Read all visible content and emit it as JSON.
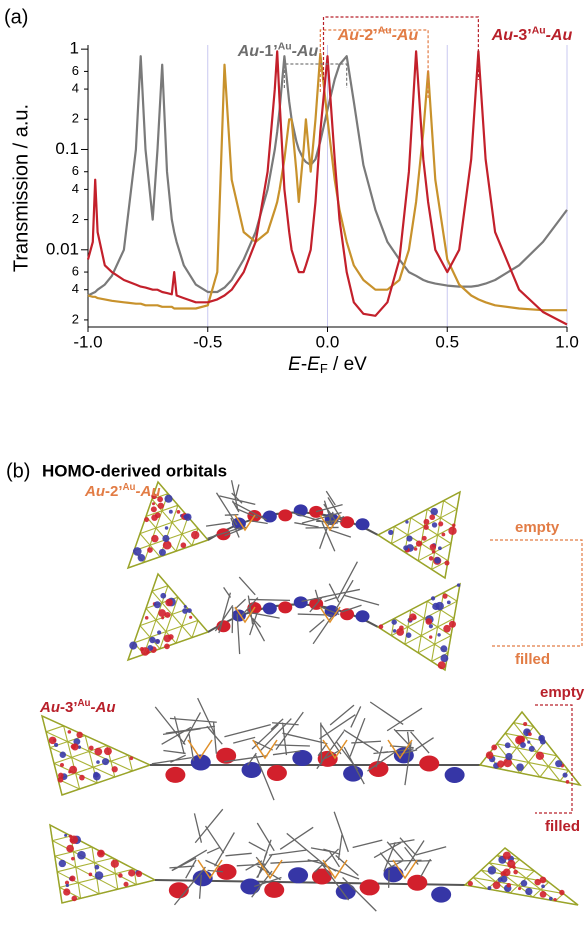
{
  "panel_a_label": "(a)",
  "chart_data": {
    "type": "line",
    "ylabel": "Transmission / a.u.",
    "xlabel": {
      "main": "E",
      "dash": "-",
      "main2": "E",
      "sub": "F",
      "unit": " / eV"
    },
    "x": [
      -1,
      -0.98,
      -0.97,
      -0.96,
      -0.93,
      -0.9,
      -0.85,
      -0.8,
      -0.78,
      -0.76,
      -0.73,
      -0.71,
      -0.69,
      -0.67,
      -0.65,
      -0.64,
      -0.63,
      -0.6,
      -0.55,
      -0.5,
      -0.46,
      -0.43,
      -0.4,
      -0.35,
      -0.3,
      -0.25,
      -0.22,
      -0.21,
      -0.2,
      -0.18,
      -0.16,
      -0.15,
      -0.13,
      -0.12,
      -0.1,
      -0.09,
      -0.07,
      -0.05,
      -0.03,
      0,
      0.03,
      0.05,
      0.08,
      0.11,
      0.15,
      0.2,
      0.25,
      0.3,
      0.34,
      0.37,
      0.4,
      0.42,
      0.45,
      0.5,
      0.55,
      0.6,
      0.63,
      0.66,
      0.7,
      0.8,
      0.9,
      1.0
    ],
    "series": [
      {
        "name": [
          "Au",
          "-1’",
          "Au",
          "-Au"
        ],
        "color": "#7a7a7a",
        "label_color": "#6e6e6e",
        "values": [
          0.0035,
          0.0037,
          0.0038,
          0.004,
          0.0045,
          0.0055,
          0.01,
          0.1,
          0.85,
          0.1,
          0.02,
          0.1,
          0.7,
          0.06,
          0.02,
          0.015,
          0.012,
          0.007,
          0.0045,
          0.0038,
          0.0038,
          0.0042,
          0.005,
          0.008,
          0.015,
          0.04,
          0.1,
          0.15,
          0.25,
          0.85,
          0.3,
          0.2,
          0.12,
          0.1,
          0.08,
          0.075,
          0.07,
          0.08,
          0.12,
          0.25,
          0.5,
          0.7,
          0.85,
          0.3,
          0.07,
          0.025,
          0.012,
          0.008,
          0.006,
          0.0055,
          0.005,
          0.0048,
          0.0046,
          0.0044,
          0.0043,
          0.0043,
          0.0044,
          0.0046,
          0.005,
          0.007,
          0.012,
          0.025
        ]
      },
      {
        "name": [
          "Au",
          "-2’",
          "Au",
          "-Au"
        ],
        "color": "#c8922c",
        "label_color": "#e27c45",
        "values": [
          0.0035,
          0.0034,
          0.0034,
          0.0033,
          0.0032,
          0.0031,
          0.003,
          0.0029,
          0.0029,
          0.0028,
          0.0028,
          0.0028,
          0.0027,
          0.0027,
          0.0027,
          0.0026,
          0.0026,
          0.0026,
          0.0026,
          0.0028,
          0.006,
          0.7,
          0.05,
          0.015,
          0.012,
          0.015,
          0.025,
          0.03,
          0.04,
          0.08,
          0.2,
          0.2,
          0.06,
          0.03,
          0.1,
          0.2,
          0.06,
          0.2,
          0.9,
          0.2,
          0.05,
          0.025,
          0.012,
          0.007,
          0.005,
          0.004,
          0.004,
          0.005,
          0.01,
          0.03,
          0.15,
          0.6,
          0.05,
          0.008,
          0.0045,
          0.0035,
          0.0032,
          0.003,
          0.0028,
          0.0026,
          0.0025,
          0.0025
        ]
      },
      {
        "name": [
          "Au",
          "-3’",
          "Au",
          "-Au"
        ],
        "color": "#c3202b",
        "label_color": "#b8202a",
        "values": [
          0.008,
          0.012,
          0.05,
          0.015,
          0.007,
          0.006,
          0.005,
          0.0045,
          0.0043,
          0.0042,
          0.004,
          0.004,
          0.0038,
          0.0037,
          0.0036,
          0.006,
          0.0035,
          0.0033,
          0.003,
          0.003,
          0.0032,
          0.0035,
          0.004,
          0.006,
          0.012,
          0.06,
          0.4,
          0.95,
          0.3,
          0.04,
          0.015,
          0.01,
          0.007,
          0.006,
          0.006,
          0.007,
          0.01,
          0.03,
          0.15,
          0.85,
          0.08,
          0.02,
          0.006,
          0.003,
          0.0023,
          0.0022,
          0.003,
          0.008,
          0.06,
          0.95,
          0.08,
          0.03,
          0.01,
          0.006,
          0.01,
          0.08,
          0.95,
          0.08,
          0.015,
          0.004,
          0.0024,
          0.0018
        ]
      }
    ],
    "xlim": [
      -1.0,
      1.0
    ],
    "xticks": [
      {
        "value": -1,
        "label": "-1.0"
      },
      -0.5,
      {
        "value": 0,
        "label": "0.0"
      },
      0.5,
      {
        "value": 1,
        "label": "1.0"
      }
    ],
    "ylim": [
      0.0017,
      1.1
    ],
    "log_y": true,
    "yticks": [
      {
        "value": 0.002,
        "label": "2"
      },
      {
        "value": 0.004,
        "label": "4"
      },
      {
        "value": 0.006,
        "label": "6"
      },
      0.01,
      {
        "value": 0.02,
        "label": "2"
      },
      {
        "value": 0.04,
        "label": "4"
      },
      {
        "value": 0.06,
        "label": "6"
      },
      0.1,
      {
        "value": 0.2,
        "label": "2"
      },
      {
        "value": 0.4,
        "label": "4"
      },
      {
        "value": 0.6,
        "label": "6"
      },
      1
    ],
    "grid_x": true,
    "grid_color": "#c9c8f0"
  },
  "panel_b": {
    "label": "(b)",
    "title": "HOMO-derived orbitals",
    "groups": [
      {
        "name": [
          "Au",
          "-2’",
          "Au",
          "-Au"
        ],
        "top": "empty",
        "bottom": "filled",
        "color": "#e27c45"
      },
      {
        "name": [
          "Au",
          "-3’",
          "Au",
          "-Au"
        ],
        "top": "empty",
        "bottom": "filled",
        "color": "#b8202a"
      }
    ]
  }
}
